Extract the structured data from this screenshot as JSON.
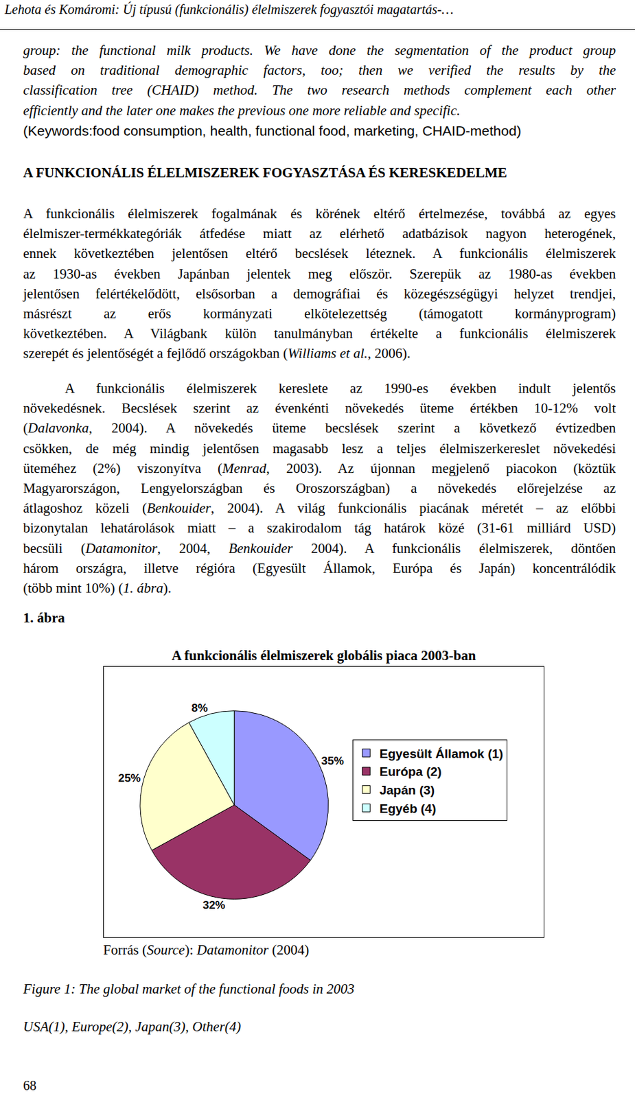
{
  "header": "Lehota és Komáromi: Új típusú (funkcionális) élelmiszerek fogyasztói magatartás-…",
  "abstract": {
    "style": "italic",
    "indent": false,
    "lines": [
      [
        "group: the functional milk products. We have done the segmentation of the product group"
      ],
      [
        "based on traditional demographic factors, too; then we verified the results by the"
      ],
      [
        "classification tree (CHAID) method. The two research methods complement each other"
      ],
      [
        "efficiently and the later one makes the previous one more reliable and specific."
      ]
    ]
  },
  "keywords": {
    "style": "sans",
    "indent": false,
    "lines": [
      [
        "(Keywords:food consumption, health, functional food, marketing, CHAID-method)"
      ]
    ]
  },
  "section_heading": "A FUNKCIONÁLIS ÉLELMISZEREK FOGYASZTÁSA ÉS KERESKEDELME",
  "paragraphs": [
    {
      "style": "normal",
      "indent": false,
      "lines": [
        [
          "A funkcionális élelmiszerek fogalmának és körének eltérő értelmezése, továbbá az egyes"
        ],
        [
          "élelmiszer-termékkategóriák átfedése miatt az elérhető adatbázisok nagyon heterogének,"
        ],
        [
          "ennek következtében jelentősen eltérő becslések léteznek. A funkcionális élelmiszerek"
        ],
        [
          "az 1930-as években Japánban jelentek meg először. Szerepük az 1980-as években"
        ],
        [
          "jelentősen felértékelődött, elsősorban a demográfiai és közegészségügyi helyzet trendjei,"
        ],
        [
          "másrészt az erős kormányzati elkötelezettség (támogatott kormányprogram)"
        ],
        [
          "következtében. A Világbank külön tanulmányban értékelte a funkcionális élelmiszerek"
        ],
        [
          "szerepét és jelentőségét a fejlődő országokban (",
          {
            "text": "Williams et al.",
            "style": "italic"
          },
          ", 2006)."
        ]
      ]
    },
    {
      "style": "normal",
      "indent": true,
      "lines": [
        [
          "A funkcionális élelmiszerek kereslete az 1990-es években indult jelentős"
        ],
        [
          "növekedésnek. Becslések szerint az évenkénti növekedés üteme értékben 10-12% volt"
        ],
        [
          "(",
          {
            "text": "Dalavonka",
            "style": "italic"
          },
          ", 2004). A növekedés üteme becslések szerint a következő évtizedben"
        ],
        [
          "csökken, de még mindig jelentősen magasabb lesz a teljes élelmiszerkereslet növekedési"
        ],
        [
          "üteméhez (2%) viszonyítva (",
          {
            "text": "Menrad",
            "style": "italic"
          },
          ", 2003). Az újonnan megjelenő piacokon (köztük"
        ],
        [
          "Magyarországon, Lengyelországban és Oroszországban) a növekedés előrejelzése az"
        ],
        [
          "átlagoshoz közeli (",
          {
            "text": "Benkouider",
            "style": "italic"
          },
          ", 2004). A világ funkcionális piacának méretét – az előbbi"
        ],
        [
          "bizonytalan lehatárolások miatt – a szakirodalom tág határok közé (31-61 milliárd USD)"
        ],
        [
          "becsüli (",
          {
            "text": "Datamonitor",
            "style": "italic"
          },
          ", 2004, ",
          {
            "text": "Benkouider",
            "style": "italic"
          },
          " 2004). A funkcionális élelmiszerek, döntően"
        ],
        [
          "három országra, illetve régióra (Egyesült Államok, Európa és Japán) koncentrálódik"
        ],
        [
          "(több mint 10%) (",
          {
            "text": "1. ábra",
            "style": "italic"
          },
          ")."
        ]
      ]
    }
  ],
  "figure_label": "1. ábra",
  "chart_data": {
    "type": "pie",
    "title": "A funkcionális élelmiszerek globális piaca 2003-ban",
    "categories": [
      "Egyesült Államok (1)",
      "Európa (2)",
      "Japán (3)",
      "Egyéb (4)"
    ],
    "values": [
      35,
      32,
      25,
      8
    ],
    "value_labels": [
      "35%",
      "32%",
      "25%",
      "8%"
    ],
    "colors": [
      "#9999ff",
      "#993366",
      "#ffffcc",
      "#ccffff"
    ],
    "data_labels": true,
    "legend": "right"
  },
  "source": [
    "Forrás (",
    {
      "text": "Source",
      "style": "italic"
    },
    "): ",
    {
      "text": "Datamonitor",
      "style": "italic"
    },
    " (2004)"
  ],
  "caption": "Figure 1: The global market of the functional foods in 2003",
  "caption_legend": "USA(1), Europe(2), Japan(3), Other(4)",
  "page_number": "68"
}
